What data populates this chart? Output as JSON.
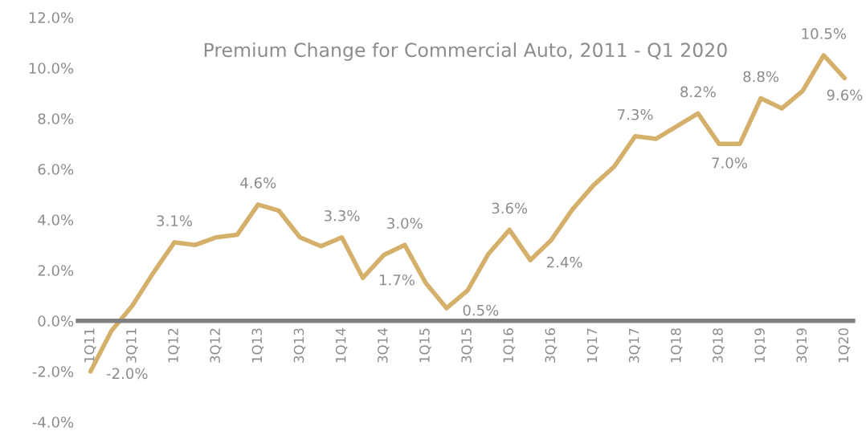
{
  "chart_data": {
    "type": "line",
    "title": "Premium Change for Commercial Auto, 2011 - Q1 2020",
    "categories": [
      "1Q11",
      null,
      "3Q11",
      null,
      "1Q12",
      null,
      "3Q12",
      null,
      "1Q13",
      null,
      "3Q13",
      null,
      "1Q14",
      null,
      "3Q14",
      null,
      "1Q15",
      null,
      "3Q15",
      null,
      "1Q16",
      null,
      "3Q16",
      null,
      "1Q17",
      null,
      "3Q17",
      null,
      "1Q18",
      null,
      "3Q18",
      null,
      "1Q19",
      null,
      "3Q19",
      null,
      "1Q20"
    ],
    "series": [
      {
        "color": "#d4b06a",
        "values": [
          -2.0,
          -0.4,
          0.6,
          1.9,
          3.1,
          3.0,
          3.3,
          3.4,
          4.6,
          4.35,
          3.3,
          2.95,
          3.3,
          1.7,
          2.6,
          3.0,
          1.5,
          0.5,
          1.2,
          2.65,
          3.6,
          2.4,
          3.2,
          4.4,
          5.35,
          6.1,
          7.3,
          7.2,
          7.7,
          8.2,
          7.0,
          7.0,
          8.8,
          8.4,
          9.1,
          10.5,
          9.6
        ],
        "value_labels": [
          "-2.0%",
          null,
          null,
          null,
          "3.1%",
          null,
          null,
          null,
          "4.6%",
          null,
          null,
          null,
          "3.3%",
          "1.7%",
          null,
          "3.0%",
          null,
          "0.5%",
          null,
          null,
          "3.6%",
          "2.4%",
          null,
          null,
          null,
          null,
          "7.3%",
          null,
          null,
          "8.2%",
          "7.0%",
          null,
          "8.8%",
          null,
          null,
          "10.5%",
          "9.6%"
        ]
      }
    ],
    "ylim": [
      -4,
      12
    ],
    "yticks": [
      {
        "value": -4,
        "label": "-4.0%"
      },
      {
        "value": -2,
        "label": "-2.0%"
      },
      {
        "value": 0,
        "label": "0.0%"
      },
      {
        "value": 2,
        "label": "2.0%"
      },
      {
        "value": 4,
        "label": "4.0%"
      },
      {
        "value": 6,
        "label": "6.0%"
      },
      {
        "value": 8,
        "label": "8.0%"
      },
      {
        "value": 10,
        "label": "10.0%"
      },
      {
        "value": 12,
        "label": "12.0%"
      }
    ],
    "grid": false,
    "legend": false,
    "marker": "none",
    "line_style": "solid"
  }
}
